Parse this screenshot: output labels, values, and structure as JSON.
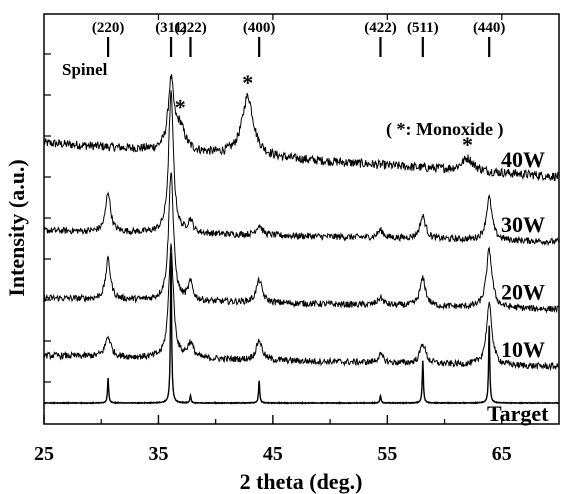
{
  "chart_data": {
    "type": "line",
    "xlabel": "2 theta (deg.)",
    "ylabel": "Intensity (a.u.)",
    "xlim": [
      25,
      70
    ],
    "x_ticks": [
      25,
      35,
      45,
      55,
      65
    ],
    "grid": false,
    "reference": {
      "name": "Spinel",
      "peaks": [
        {
          "label": "(220)",
          "x": 30.6
        },
        {
          "label": "(311)",
          "x": 36.1
        },
        {
          "label": "(222)",
          "x": 37.8
        },
        {
          "label": "(400)",
          "x": 43.8
        },
        {
          "label": "(422)",
          "x": 54.4
        },
        {
          "label": "(511)",
          "x": 58.1
        },
        {
          "label": "(440)",
          "x": 63.9
        }
      ]
    },
    "monoxide_legend": "( *: Monoxide )",
    "monoxide_markers": [
      {
        "symbol": "*",
        "x": 36.9
      },
      {
        "symbol": "*",
        "x": 42.8
      },
      {
        "symbol": "*",
        "x": 62.0
      }
    ],
    "series": [
      {
        "name": "40W",
        "baseline": 10.4,
        "peaks": [
          {
            "x": 36.1,
            "h": 2.7,
            "w": 0.3
          },
          {
            "x": 36.9,
            "h": 0.9,
            "w": 0.5
          },
          {
            "x": 42.8,
            "h": 2.4,
            "w": 0.6
          },
          {
            "x": 62.0,
            "h": 0.5,
            "w": 0.6
          }
        ]
      },
      {
        "name": "30W",
        "baseline": 6.9,
        "peaks": [
          {
            "x": 30.6,
            "h": 1.6,
            "w": 0.25
          },
          {
            "x": 36.1,
            "h": 5.6,
            "w": 0.25
          },
          {
            "x": 37.8,
            "h": 0.5,
            "w": 0.25
          },
          {
            "x": 43.8,
            "h": 0.4,
            "w": 0.3
          },
          {
            "x": 54.4,
            "h": 0.3,
            "w": 0.3
          },
          {
            "x": 58.1,
            "h": 0.9,
            "w": 0.3
          },
          {
            "x": 63.9,
            "h": 1.7,
            "w": 0.3
          }
        ]
      },
      {
        "name": "20W",
        "baseline": 4.2,
        "peaks": [
          {
            "x": 30.6,
            "h": 1.6,
            "w": 0.25
          },
          {
            "x": 36.1,
            "h": 5.2,
            "w": 0.25
          },
          {
            "x": 37.8,
            "h": 0.7,
            "w": 0.25
          },
          {
            "x": 43.8,
            "h": 0.9,
            "w": 0.3
          },
          {
            "x": 54.4,
            "h": 0.3,
            "w": 0.3
          },
          {
            "x": 58.1,
            "h": 1.1,
            "w": 0.3
          },
          {
            "x": 63.9,
            "h": 2.3,
            "w": 0.3
          }
        ]
      },
      {
        "name": "10W",
        "baseline": 1.9,
        "peaks": [
          {
            "x": 30.6,
            "h": 0.8,
            "w": 0.3
          },
          {
            "x": 36.1,
            "h": 4.5,
            "w": 0.25
          },
          {
            "x": 37.8,
            "h": 0.6,
            "w": 0.3
          },
          {
            "x": 43.8,
            "h": 0.8,
            "w": 0.3
          },
          {
            "x": 54.4,
            "h": 0.3,
            "w": 0.3
          },
          {
            "x": 58.1,
            "h": 0.8,
            "w": 0.3
          },
          {
            "x": 63.9,
            "h": 2.4,
            "w": 0.3
          }
        ]
      },
      {
        "name": "Target",
        "baseline": 0.0,
        "peaks": [
          {
            "x": 30.6,
            "h": 1.0,
            "w": 0.06
          },
          {
            "x": 36.1,
            "h": 6.0,
            "w": 0.06
          },
          {
            "x": 37.8,
            "h": 0.3,
            "w": 0.06
          },
          {
            "x": 43.8,
            "h": 0.9,
            "w": 0.06
          },
          {
            "x": 54.4,
            "h": 0.3,
            "w": 0.06
          },
          {
            "x": 58.1,
            "h": 1.7,
            "w": 0.06
          },
          {
            "x": 63.9,
            "h": 3.1,
            "w": 0.06
          }
        ]
      }
    ]
  }
}
